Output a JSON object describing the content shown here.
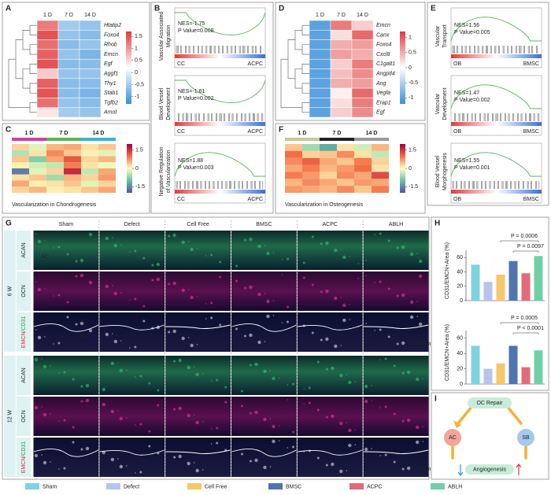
{
  "panel_a": {
    "label": "A",
    "columns": [
      "1 D",
      "7 D",
      "14 D"
    ],
    "genes": [
      "Htatip2",
      "Foxo4",
      "Rhob",
      "Emcn",
      "Egf",
      "Aggf1",
      "Thy1",
      "Stab1",
      "Tgfb2",
      "Amot"
    ],
    "values": [
      [
        1.2,
        -0.5,
        -0.6
      ],
      [
        1.5,
        -0.6,
        -0.7
      ],
      [
        1.3,
        -0.7,
        -0.6
      ],
      [
        1.4,
        -0.6,
        -0.8
      ],
      [
        1.5,
        -0.7,
        -0.7
      ],
      [
        0.6,
        -0.6,
        -0.6
      ],
      [
        1.4,
        -0.7,
        -0.7
      ],
      [
        1.5,
        -0.7,
        -0.8
      ],
      [
        1.3,
        -0.6,
        -0.7
      ],
      [
        0.4,
        -0.5,
        -0.6
      ]
    ],
    "clim": [
      -1.3,
      1.7
    ],
    "colorbar_ticks": [
      1.5,
      1,
      0.5,
      0,
      -0.5,
      -1
    ]
  },
  "panel_b": {
    "label": "B",
    "plots": [
      {
        "title": [
          "Vascular Associated",
          "Migration"
        ],
        "nes": "NES=-1.75",
        "p": "P Value=0.008",
        "left": "CC",
        "right": "ACPC"
      },
      {
        "title": [
          "Blood Vessel",
          "Development"
        ],
        "nes": "NES=-1.61",
        "p": "P Value=0.002",
        "left": "CC",
        "right": "ACPC"
      },
      {
        "title": [
          "Negative Regulation",
          "of Vascularization"
        ],
        "nes": "NES=1.88",
        "p": "P Value=0.003",
        "left": "CC",
        "right": "ACPC"
      }
    ]
  },
  "panel_c": {
    "label": "C",
    "columns": [
      {
        "name": "1 D",
        "color": "#d63ca0"
      },
      {
        "name": "7 D",
        "color": "#55b848"
      },
      {
        "name": "14 D",
        "color": "#35b6d6"
      }
    ],
    "values": [
      [
        0.3,
        -0.2,
        0.5,
        0.6,
        0.2,
        0.4
      ],
      [
        -0.5,
        0.2,
        0.8,
        0.4,
        0.1,
        -0.2
      ],
      [
        0.4,
        -0.8,
        0.6,
        1.2,
        0.3,
        0.5
      ],
      [
        0.1,
        -0.3,
        -0.4,
        0.9,
        0.2,
        -0.1
      ],
      [
        -1.6,
        -0.2,
        0.3,
        1.6,
        -0.4,
        0.6
      ],
      [
        0.2,
        0.4,
        -0.6,
        0.5,
        0.3,
        0.7
      ],
      [
        0.6,
        0.1,
        0.2,
        0.4,
        -0.2,
        0.3
      ],
      [
        0.3,
        0.5,
        0.1,
        0.2,
        0.4,
        0.6
      ]
    ],
    "clim": [
      -2,
      2
    ],
    "colorbar_ticks": [
      1.5,
      0,
      -1.5
    ],
    "caption": "Vascularization in Chondrogenesis"
  },
  "panel_d": {
    "label": "D",
    "columns": [
      "1 D",
      "7 D",
      "14 D"
    ],
    "genes": [
      "Emcn",
      "Canx",
      "Foxo4",
      "Cxcl8",
      "C1galt1",
      "Angptl4",
      "Ang",
      "Vegfa",
      "Erap1",
      "Egf"
    ],
    "values": [
      [
        -1,
        0.8,
        0.3
      ],
      [
        -1,
        0.2,
        0.9
      ],
      [
        -1,
        0.5,
        0.6
      ],
      [
        -1,
        0.6,
        0.5
      ],
      [
        -1,
        0.3,
        0.8
      ],
      [
        -1,
        0.4,
        0.7
      ],
      [
        -1,
        0.5,
        0.6
      ],
      [
        -1,
        0.1,
        0.9
      ],
      [
        -1,
        0.2,
        0.8
      ],
      [
        -1,
        0.3,
        0.7
      ]
    ],
    "clim": [
      -1.2,
      1.2
    ],
    "colorbar_ticks": [
      1,
      0.5,
      0,
      -0.5,
      -1
    ]
  },
  "panel_e": {
    "label": "E",
    "plots": [
      {
        "title": [
          "Vascular",
          "Transport"
        ],
        "nes": "NES=1.56",
        "p": "P Value=0.005",
        "left": "OB",
        "right": "BMSC"
      },
      {
        "title": [
          "Vascular",
          "Development"
        ],
        "nes": "NES=1.47",
        "p": "P Value=0.002",
        "left": "OB",
        "right": "BMSC"
      },
      {
        "title": [
          "Blood Vessel",
          "Morphogenesis"
        ],
        "nes": "NES=1.55",
        "p": "P Value=0.001",
        "left": "OB",
        "right": "BMSC"
      }
    ]
  },
  "panel_f": {
    "label": "F",
    "columns": [
      {
        "name": "1 D",
        "color": "#c8c890"
      },
      {
        "name": "7 D",
        "color": "#222222"
      },
      {
        "name": "14 D",
        "color": "#9a9a9a"
      }
    ],
    "values": [
      [
        0.4,
        -0.6,
        -1.2,
        0.2,
        -0.3,
        0.5
      ],
      [
        1.0,
        0.3,
        0.4,
        0.8,
        0.2,
        -0.4
      ],
      [
        0.8,
        1.1,
        0.6,
        0.4,
        0.9,
        0.3
      ],
      [
        0.6,
        0.9,
        0.5,
        0.7,
        1.0,
        0.2
      ],
      [
        0.9,
        0.7,
        0.3,
        0.8,
        0.6,
        1.3
      ],
      [
        0.5,
        0.8,
        0.6,
        0.4,
        0.7,
        0.6
      ],
      [
        0.7,
        0.6,
        0.5,
        0.8,
        0.4,
        0.9
      ]
    ],
    "clim": [
      -2,
      2
    ],
    "colorbar_ticks": [
      1.5,
      0,
      -1.5
    ],
    "caption": "Vascularization in Osteogenesis"
  },
  "panel_g": {
    "label": "G",
    "columns": [
      "Sham",
      "Defect",
      "Cell Free",
      "BMSC",
      "ACPC",
      "ABLH"
    ],
    "groups": [
      {
        "time": "6 W",
        "rows": [
          [
            "ACAN"
          ],
          [
            "OCN"
          ],
          [
            "EMCN",
            "/CD31"
          ]
        ]
      },
      {
        "time": "12 W",
        "rows": [
          [
            "ACAN"
          ],
          [
            "OCN"
          ],
          [
            "EMCN",
            "/CD31"
          ]
        ]
      }
    ],
    "annotations": [
      "AC",
      "SB",
      "AC",
      "SB",
      "200 μm",
      "200 μm"
    ]
  },
  "panel_h": {
    "label": "H",
    "charts": [
      {
        "ylabel": "CD31/EMCN+Area (%)",
        "values": [
          50,
          26,
          36,
          55,
          38,
          62
        ],
        "ylim": [
          0,
          70
        ],
        "yticks": [
          0,
          20,
          40,
          60
        ],
        "p_labels": [
          "P = 0.0006",
          "P = 0.0097"
        ]
      },
      {
        "ylabel": "CD31/EMCN+Area (%)",
        "values": [
          50,
          20,
          27,
          50,
          22,
          44
        ],
        "ylim": [
          0,
          70
        ],
        "yticks": [
          0,
          20,
          40,
          60
        ],
        "p_labels": [
          "P = 0.0005",
          "P < 0.0001"
        ]
      }
    ]
  },
  "legend": {
    "groups": [
      "Sham",
      "Defect",
      "Cell Free",
      "BMSC",
      "ACPC",
      "ABLH"
    ],
    "colors": [
      "#7fd3e0",
      "#b8c4ec",
      "#f5c76a",
      "#4f74b0",
      "#e36a7a",
      "#6fd0a6"
    ]
  },
  "panel_i": {
    "label": "I",
    "nodes": [
      "OC Repair",
      "AC",
      "SB",
      "Angiogenesis"
    ]
  }
}
